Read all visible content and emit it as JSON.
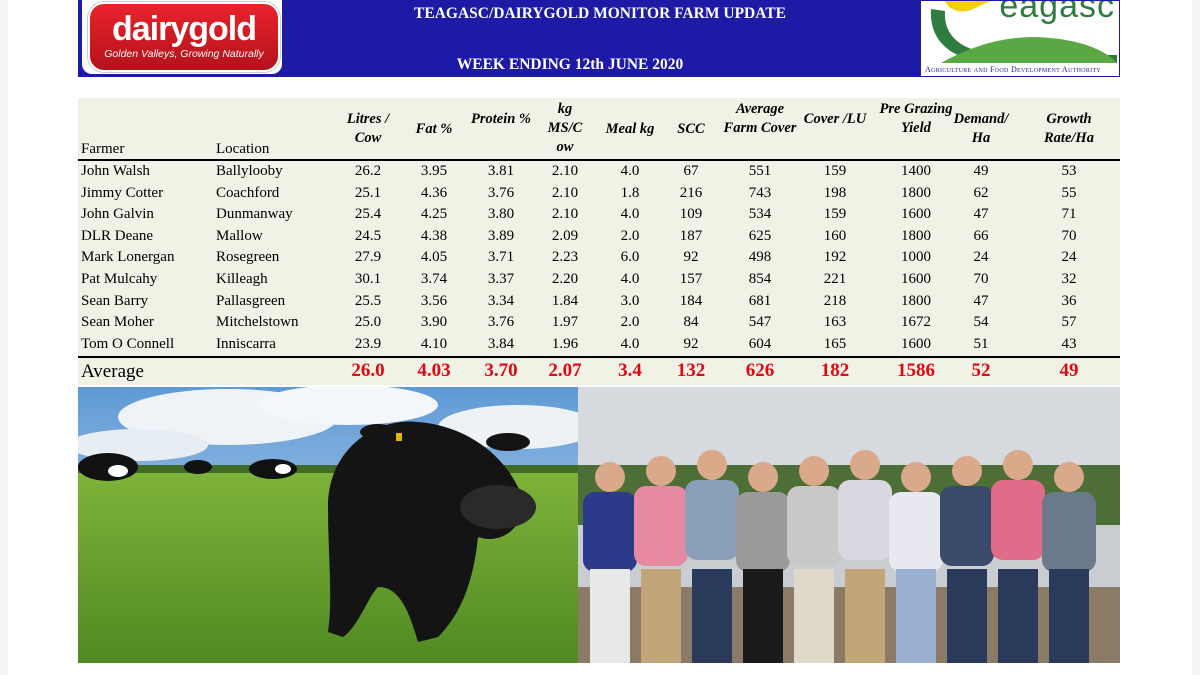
{
  "header": {
    "title": "TEAGASC/DAIRYGOLD MONITOR FARM UPDATE",
    "week": "WEEK ENDING 12th JUNE 2020",
    "left_logo": {
      "name": "dairygold",
      "tagline": "Golden Valleys, Growing Naturally"
    },
    "right_logo": {
      "name": "eagasc",
      "subtitle": "Agriculture and Food Development Authority"
    }
  },
  "table": {
    "columns": [
      "Farmer",
      "Location",
      "Litres / Cow",
      "Fat %",
      "Protein %",
      "kg MS/C ow",
      "Meal kg",
      "SCC",
      "Average Farm Cover",
      "Cover /LU",
      "Pre Grazing Yield",
      "Demand/ Ha",
      "Growth Rate/Ha"
    ],
    "rows": [
      [
        "John Walsh",
        "Ballylooby",
        "26.2",
        "3.95",
        "3.81",
        "2.10",
        "4.0",
        "67",
        "551",
        "159",
        "1400",
        "49",
        "53"
      ],
      [
        "Jimmy Cotter",
        "Coachford",
        "25.1",
        "4.36",
        "3.76",
        "2.10",
        "1.8",
        "216",
        "743",
        "198",
        "1800",
        "62",
        "55"
      ],
      [
        "John Galvin",
        "Dunmanway",
        "25.4",
        "4.25",
        "3.80",
        "2.10",
        "4.0",
        "109",
        "534",
        "159",
        "1600",
        "47",
        "71"
      ],
      [
        "DLR Deane",
        "Mallow",
        "24.5",
        "4.38",
        "3.89",
        "2.09",
        "2.0",
        "187",
        "625",
        "160",
        "1800",
        "66",
        "70"
      ],
      [
        "Mark Lonergan",
        "Rosegreen",
        "27.9",
        "4.05",
        "3.71",
        "2.23",
        "6.0",
        "92",
        "498",
        "192",
        "1000",
        "24",
        "24"
      ],
      [
        "Pat Mulcahy",
        "Killeagh",
        "30.1",
        "3.74",
        "3.37",
        "2.20",
        "4.0",
        "157",
        "854",
        "221",
        "1600",
        "70",
        "32"
      ],
      [
        "Sean Barry",
        "Pallasgreen",
        "25.5",
        "3.56",
        "3.34",
        "1.84",
        "3.0",
        "184",
        "681",
        "218",
        "1800",
        "47",
        "36"
      ],
      [
        "Sean Moher",
        "Mitchelstown",
        "25.0",
        "3.90",
        "3.76",
        "1.97",
        "2.0",
        "84",
        "547",
        "163",
        "1672",
        "54",
        "57"
      ],
      [
        "Tom O Connell",
        "Inniscarra",
        "23.9",
        "4.10",
        "3.84",
        "1.96",
        "4.0",
        "92",
        "604",
        "165",
        "1600",
        "51",
        "43"
      ]
    ],
    "average": {
      "label": "Average",
      "values": [
        "26.0",
        "4.03",
        "3.70",
        "2.07",
        "3.4",
        "132",
        "626",
        "182",
        "1586",
        "52",
        "49"
      ]
    }
  },
  "colors": {
    "banner": "#1d1aa6",
    "table_bg": "#eff2e4",
    "average_value": "#e30613",
    "logo_red": "#d71920",
    "logo_green": "#2e7d3e"
  },
  "photos": [
    {
      "name": "cow-in-field-photo"
    },
    {
      "name": "farmers-group-photo"
    }
  ]
}
